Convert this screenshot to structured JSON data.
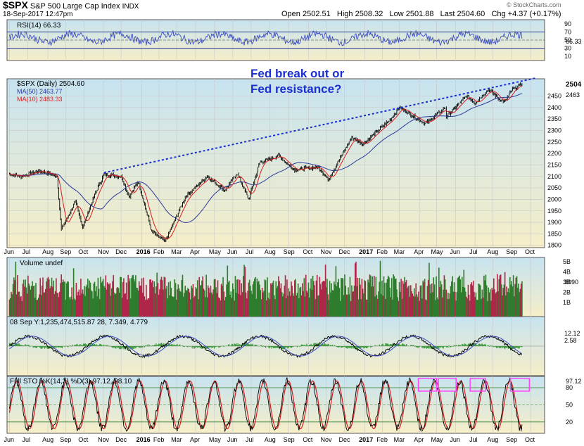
{
  "header": {
    "symbol": "$SPX",
    "name": "S&P 500 Large Cap Index",
    "exchange": "INDX",
    "datetime": "18-Sep-2017 12:47pm",
    "quote_text": "Open 2502.51   High 2508.32   Low 2501.88   Last 2504.60   Chg +4.37 (+0.17%)",
    "watermark": "© StockCharts.com"
  },
  "colors": {
    "bg_top": "#c7e3f0",
    "bg_bottom": "#f6eec8",
    "rsi_line": "#3b4cc0",
    "price_bar": "#000000",
    "ma50": "#2a3a9c",
    "ma10": "#d81c1c",
    "trendline": "#1a2fd0",
    "annotation": "#1a2fd0",
    "vol_up": "#2e7d2e",
    "vol_down": "#b0264a",
    "sto_box": "#ff40ff"
  },
  "chart_data": [
    {
      "type": "line",
      "panel": "rsi",
      "title": "RSI(14) 66.33",
      "ylim": [
        0,
        100
      ],
      "yticks": [
        10,
        30,
        50,
        70,
        90
      ],
      "last_label": "66.33",
      "reference_lines": [
        30,
        70
      ]
    },
    {
      "type": "ohlc",
      "panel": "price",
      "legend": [
        {
          "label": "$SPX (Daily) 2504.60",
          "color": "#000000"
        },
        {
          "label": "MA(50) 2463.77",
          "color": "#2a3a9c"
        },
        {
          "label": "MA(10) 2483.33",
          "color": "#d81c1c"
        }
      ],
      "ylim": [
        1790,
        2525
      ],
      "yticks": [
        1800,
        1850,
        1900,
        1950,
        2000,
        2050,
        2100,
        2150,
        2200,
        2250,
        2300,
        2350,
        2400,
        2450
      ],
      "last_labels": [
        "2504",
        "2463"
      ],
      "anchors": [
        {
          "date": "2015-06-01",
          "close": 2110
        },
        {
          "date": "2015-06-20",
          "close": 2100
        },
        {
          "date": "2015-07-20",
          "close": 2125
        },
        {
          "date": "2015-08-18",
          "close": 2100
        },
        {
          "date": "2015-08-25",
          "close": 1868
        },
        {
          "date": "2015-09-17",
          "close": 1990
        },
        {
          "date": "2015-09-29",
          "close": 1880
        },
        {
          "date": "2015-10-20",
          "close": 2030
        },
        {
          "date": "2015-11-03",
          "close": 2110
        },
        {
          "date": "2015-12-01",
          "close": 2100
        },
        {
          "date": "2015-12-14",
          "close": 2010
        },
        {
          "date": "2015-12-29",
          "close": 2080
        },
        {
          "date": "2016-01-20",
          "close": 1860
        },
        {
          "date": "2016-02-11",
          "close": 1815
        },
        {
          "date": "2016-03-15",
          "close": 2010
        },
        {
          "date": "2016-04-20",
          "close": 2100
        },
        {
          "date": "2016-05-19",
          "close": 2040
        },
        {
          "date": "2016-06-08",
          "close": 2115
        },
        {
          "date": "2016-06-27",
          "close": 2000
        },
        {
          "date": "2016-07-15",
          "close": 2160
        },
        {
          "date": "2016-08-15",
          "close": 2190
        },
        {
          "date": "2016-09-09",
          "close": 2130
        },
        {
          "date": "2016-10-20",
          "close": 2140
        },
        {
          "date": "2016-11-04",
          "close": 2085
        },
        {
          "date": "2016-12-13",
          "close": 2270
        },
        {
          "date": "2016-12-31",
          "close": 2240
        },
        {
          "date": "2017-02-15",
          "close": 2350
        },
        {
          "date": "2017-03-01",
          "close": 2400
        },
        {
          "date": "2017-04-13",
          "close": 2330
        },
        {
          "date": "2017-05-15",
          "close": 2400
        },
        {
          "date": "2017-05-17",
          "close": 2360
        },
        {
          "date": "2017-06-19",
          "close": 2450
        },
        {
          "date": "2017-07-03",
          "close": 2420
        },
        {
          "date": "2017-07-25",
          "close": 2480
        },
        {
          "date": "2017-08-10",
          "close": 2440
        },
        {
          "date": "2017-08-21",
          "close": 2425
        },
        {
          "date": "2017-09-01",
          "close": 2475
        },
        {
          "date": "2017-09-18",
          "close": 2504.6
        }
      ],
      "trendline": {
        "from": {
          "date": "2015-11-03",
          "value": 2116
        },
        "to": {
          "date": "2017-10-10",
          "value": 2528
        }
      },
      "annotation": [
        "Fed break out or",
        "Fed resistance?"
      ]
    },
    {
      "type": "bar",
      "panel": "volume",
      "title": "Volume undef",
      "yticks": [
        "5B",
        "4B",
        "3B",
        "2B",
        "1B"
      ],
      "last_label": "3090"
    },
    {
      "type": "line",
      "panel": "macd",
      "title": "08 Sep Y:1,235,474,515.87  28, 7.349, 4.779",
      "last_labels": [
        "12.12",
        "2.58"
      ]
    },
    {
      "type": "line",
      "panel": "stochastic",
      "title": "Full STO %K(14,3) %D(3) 97.12, 98.10",
      "ylim": [
        0,
        100
      ],
      "yticks": [
        20,
        50,
        80
      ],
      "reference_lines": [
        20,
        80
      ],
      "last_label": "97.12",
      "boxes_months": [
        [
          "2017-04-01",
          "2017-05-01"
        ],
        [
          "2017-05-04",
          "2017-06-02"
        ],
        [
          "2017-06-25",
          "2017-07-20"
        ],
        [
          "2017-08-30",
          "2017-09-30"
        ]
      ]
    }
  ],
  "x_axis": {
    "start": "2015-05-28",
    "end": "2017-10-25",
    "labels": [
      {
        "date": "2015-06-01",
        "text": "Jun"
      },
      {
        "date": "2015-07-01",
        "text": "Jul"
      },
      {
        "date": "2015-08-03",
        "text": "Aug"
      },
      {
        "date": "2015-09-01",
        "text": "Sep"
      },
      {
        "date": "2015-10-01",
        "text": "Oct"
      },
      {
        "date": "2015-11-02",
        "text": "Nov"
      },
      {
        "date": "2015-12-01",
        "text": "Dec"
      },
      {
        "date": "2016-01-04",
        "text": "2016",
        "bold": true
      },
      {
        "date": "2016-02-01",
        "text": "Feb"
      },
      {
        "date": "2016-03-01",
        "text": "Mar"
      },
      {
        "date": "2016-04-01",
        "text": "Apr"
      },
      {
        "date": "2016-05-02",
        "text": "May"
      },
      {
        "date": "2016-06-01",
        "text": "Jun"
      },
      {
        "date": "2016-07-01",
        "text": "Jul"
      },
      {
        "date": "2016-08-01",
        "text": "Aug"
      },
      {
        "date": "2016-09-01",
        "text": "Sep"
      },
      {
        "date": "2016-10-03",
        "text": "Oct"
      },
      {
        "date": "2016-11-01",
        "text": "Nov"
      },
      {
        "date": "2016-12-01",
        "text": "Dec"
      },
      {
        "date": "2017-01-03",
        "text": "2017",
        "bold": true
      },
      {
        "date": "2017-02-01",
        "text": "Feb"
      },
      {
        "date": "2017-03-01",
        "text": "Mar"
      },
      {
        "date": "2017-04-03",
        "text": "Apr"
      },
      {
        "date": "2017-05-01",
        "text": "May"
      },
      {
        "date": "2017-06-01",
        "text": "Jun"
      },
      {
        "date": "2017-07-03",
        "text": "Jul"
      },
      {
        "date": "2017-08-01",
        "text": "Aug"
      },
      {
        "date": "2017-09-01",
        "text": "Sep"
      },
      {
        "date": "2017-10-02",
        "text": "Oct"
      }
    ]
  }
}
